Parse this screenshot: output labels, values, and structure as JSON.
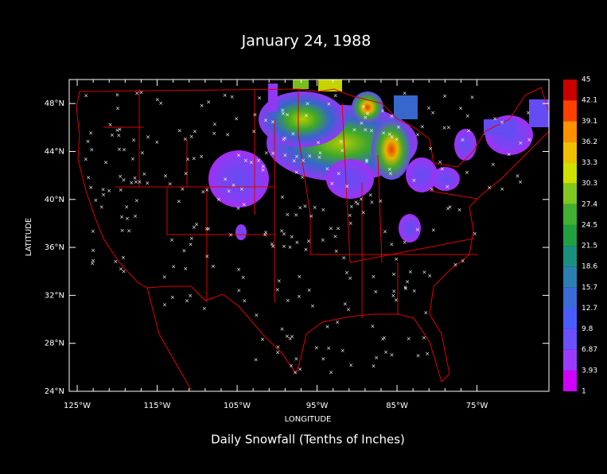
{
  "title": "January 24, 1988",
  "caption": "Daily Snowfall (Tenths of Inches)",
  "x_axis": {
    "label": "LONGITUDE",
    "lim": [
      -126,
      -66
    ],
    "ticks": [
      {
        "value": -125,
        "label": "125°W"
      },
      {
        "value": -115,
        "label": "115°W"
      },
      {
        "value": -105,
        "label": "105°W"
      },
      {
        "value": -95,
        "label": "95°W"
      },
      {
        "value": -85,
        "label": "85°W"
      },
      {
        "value": -75,
        "label": "75°W"
      }
    ]
  },
  "y_axis": {
    "label": "LATITUDE",
    "lim": [
      24,
      50
    ],
    "ticks": [
      {
        "value": 24,
        "label": "24°N"
      },
      {
        "value": 28,
        "label": "28°N"
      },
      {
        "value": 32,
        "label": "32°N"
      },
      {
        "value": 36,
        "label": "36°N"
      },
      {
        "value": 40,
        "label": "40°N"
      },
      {
        "value": 44,
        "label": "44°N"
      },
      {
        "value": 48,
        "label": "48°N"
      }
    ]
  },
  "colorbar": {
    "levels": [
      1,
      3.93,
      6.87,
      9.8,
      12.7,
      15.7,
      18.6,
      21.5,
      24.5,
      27.4,
      30.3,
      33.3,
      36.2,
      39.1,
      42.1,
      45
    ],
    "colors": [
      "#d000ff",
      "#9a3cff",
      "#6a50ff",
      "#4a5cff",
      "#3a6cd8",
      "#2a80b0",
      "#1a9080",
      "#20a040",
      "#40b030",
      "#80c820",
      "#d0e000",
      "#f0c000",
      "#ff9000",
      "#ff4000",
      "#c80000"
    ]
  }
}
